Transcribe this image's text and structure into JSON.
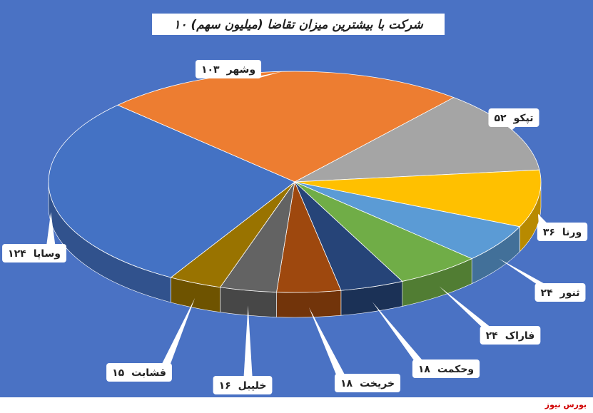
{
  "chart_data": {
    "type": "pie3d",
    "title": "۱۰ شرکت با بیشترین میزان تقاضا (میلیون سهم)",
    "categories": [
      "وشهر",
      "تپکو",
      "ورنا",
      "ثنور",
      "فاراک",
      "وحکمت",
      "خریخت",
      "خلیبل",
      "قشابت",
      "وساپا"
    ],
    "values": [
      103,
      52,
      36,
      24,
      24,
      18,
      18,
      16,
      15,
      124
    ],
    "value_labels": [
      "۱۰۳",
      "۵۲",
      "۳۶",
      "۲۴",
      "۲۴",
      "۱۸",
      "۱۸",
      "۱۶",
      "۱۵",
      "۱۲۴"
    ],
    "colors": [
      "#ed7d31",
      "#a5a5a5",
      "#ffc000",
      "#5b9bd5",
      "#70ad47",
      "#264478",
      "#9e480e",
      "#636363",
      "#997300",
      "#4472c4"
    ]
  },
  "watermark": "بورس نیوز"
}
